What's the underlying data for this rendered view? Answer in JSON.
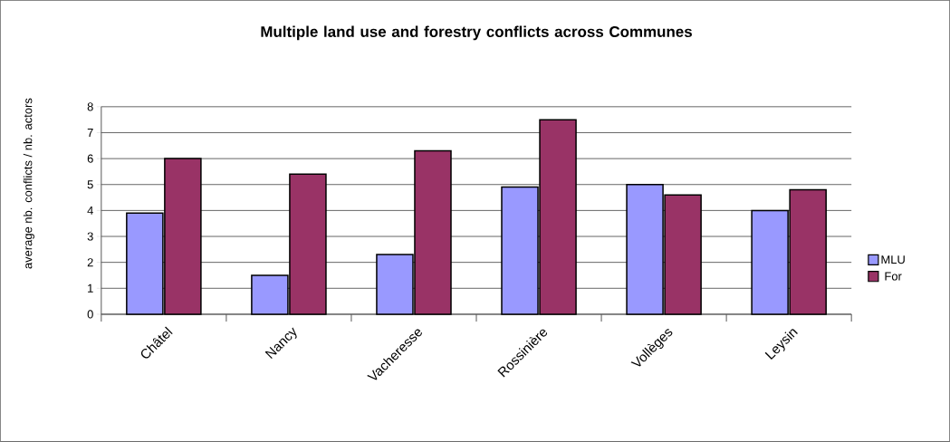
{
  "chart_data": {
    "type": "bar",
    "title": "Multiple land use and forestry conflicts across Communes",
    "ylabel": "average nb. conflicts / nb. actors",
    "categories": [
      "Châtel",
      "Nancy",
      "Vacheresse",
      "Rossinière",
      "Vollèges",
      "Leysin"
    ],
    "series": [
      {
        "name": "MLU",
        "color": "#9999ff",
        "values": [
          3.9,
          1.5,
          2.3,
          4.9,
          5.0,
          4.0
        ]
      },
      {
        "name": "For",
        "color": "#993366",
        "values": [
          6.0,
          5.4,
          6.3,
          7.5,
          4.6,
          4.8
        ]
      }
    ],
    "ylim": [
      0,
      8
    ],
    "yticks": [
      0,
      1,
      2,
      3,
      4,
      5,
      6,
      7,
      8
    ],
    "grid": "y",
    "legend": "right"
  }
}
